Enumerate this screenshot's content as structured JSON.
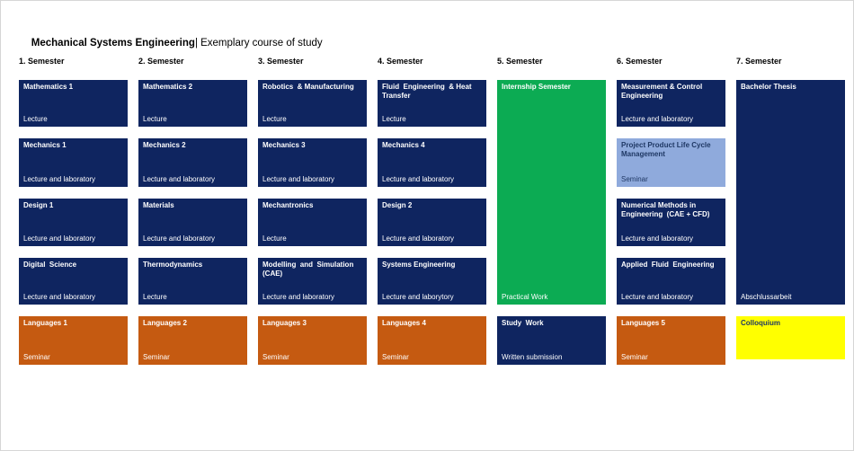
{
  "title": {
    "program": "Mechanical Systems Engineering",
    "subtitle": "| Exemplary course of study"
  },
  "colors": {
    "navy": "#0F2560",
    "green": "#0CAB53",
    "orange": "#C55A11",
    "lightblue": "#8FAADC",
    "yellow": "#FFFF00",
    "lightblue_text": "#1F3864",
    "yellow_text": "#1F3864"
  },
  "columns": [
    {
      "header": "1. Semester",
      "blocks": [
        {
          "title": "Mathematics 1",
          "sublabel": "Lecture",
          "type": "navy"
        },
        {
          "title": "Mechanics 1",
          "sublabel": "Lecture and laboratory",
          "type": "navy"
        },
        {
          "title": "Design 1",
          "sublabel": "Lecture and laboratory",
          "type": "navy"
        },
        {
          "title": "Digital  Science",
          "sublabel": "Lecture and laboratory",
          "type": "navy"
        },
        {
          "title": "Languages 1",
          "sublabel": "Seminar",
          "type": "orange"
        }
      ]
    },
    {
      "header": "2. Semester",
      "blocks": [
        {
          "title": "Mathematics 2",
          "sublabel": "Lecture",
          "type": "navy"
        },
        {
          "title": "Mechanics 2",
          "sublabel": "Lecture and laboratory",
          "type": "navy"
        },
        {
          "title": "Materials",
          "sublabel": "Lecture and laboratory",
          "type": "navy"
        },
        {
          "title": "Thermodynamics",
          "sublabel": "Lecture",
          "type": "navy"
        },
        {
          "title": "Languages 2",
          "sublabel": "Seminar",
          "type": "orange"
        }
      ]
    },
    {
      "header": "3. Semester",
      "blocks": [
        {
          "title": "Robotics  & Manufacturing",
          "sublabel": "Lecture",
          "type": "navy"
        },
        {
          "title": "Mechanics 3",
          "sublabel": "Lecture and laboratory",
          "type": "navy"
        },
        {
          "title": "Mechantronics",
          "sublabel": "Lecture",
          "type": "navy"
        },
        {
          "title": "Modelling  and  Simulation (CAE)",
          "sublabel": "Lecture and laboratory",
          "type": "navy"
        },
        {
          "title": "Languages 3",
          "sublabel": "Seminar",
          "type": "orange"
        }
      ]
    },
    {
      "header": "4. Semester",
      "blocks": [
        {
          "title": "Fluid  Engineering  & Heat Transfer",
          "sublabel": "Lecture",
          "type": "navy"
        },
        {
          "title": "Mechanics 4",
          "sublabel": "Lecture and laboratory",
          "type": "navy"
        },
        {
          "title": "Design 2",
          "sublabel": "Lecture and laboratory",
          "type": "navy"
        },
        {
          "title": "Systems Engineering",
          "sublabel": "Lecture and laborytory",
          "type": "navy"
        },
        {
          "title": "Languages 4",
          "sublabel": "Seminar",
          "type": "orange"
        }
      ]
    },
    {
      "header": "5. Semester",
      "blocks": [
        {
          "title": "Internship Semester",
          "sublabel": "Practical Work",
          "type": "green",
          "span": 4
        },
        {
          "title": "Study  Work",
          "sublabel": "Written submission",
          "type": "navy"
        }
      ]
    },
    {
      "header": "6. Semester",
      "blocks": [
        {
          "title": "Measurement & Control Engineering",
          "sublabel": "Lecture and laboratory",
          "type": "navy"
        },
        {
          "title": "Project Product Life Cycle Management",
          "sublabel": "Seminar",
          "type": "lightblue"
        },
        {
          "title": "Numerical Methods in Engineering  (CAE + CFD)",
          "sublabel": "Lecture and laboratory",
          "type": "navy"
        },
        {
          "title": "Applied  Fluid  Engineering",
          "sublabel": "Lecture and laboratory",
          "type": "navy"
        },
        {
          "title": "Languages 5",
          "sublabel": "Seminar",
          "type": "orange"
        }
      ]
    },
    {
      "header": "7. Semester",
      "blocks": [
        {
          "title": "Bachelor Thesis",
          "sublabel": "Abschlussarbeit",
          "type": "navy",
          "span": 4
        },
        {
          "title": "Colloquium",
          "sublabel": "",
          "type": "yellow"
        }
      ]
    }
  ]
}
